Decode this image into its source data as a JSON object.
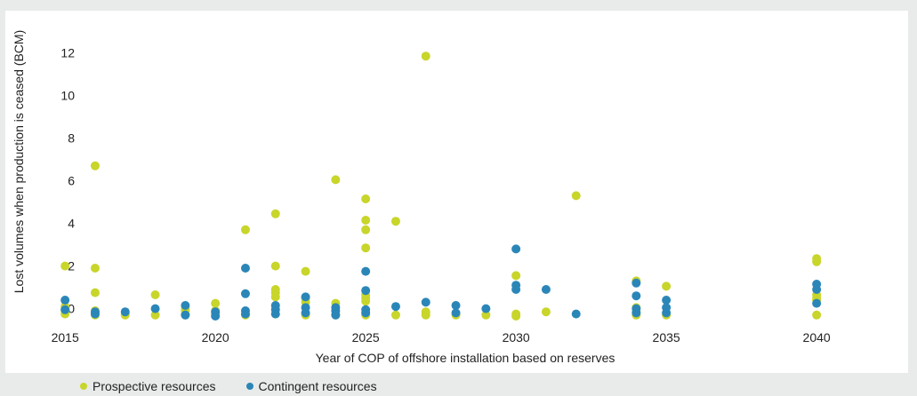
{
  "chart_data": {
    "type": "scatter",
    "title": "",
    "xlabel": "Year of COP of offshore installation based on reserves",
    "ylabel": "Lost volumes when production is ceased (BCM)",
    "xlim": [
      2013.9,
      2042.6
    ],
    "ylim": [
      -0.6,
      12.9
    ],
    "xticks": [
      2015,
      2020,
      2025,
      2030,
      2035,
      2040
    ],
    "yticks": [
      0,
      2,
      4,
      6,
      8,
      10,
      12
    ],
    "grid": false,
    "legend_position": "bottom-left",
    "series": [
      {
        "name": "Prospective resources",
        "color": "#c8d52a",
        "points": [
          [
            2015,
            2.0
          ],
          [
            2015,
            0.1
          ],
          [
            2015,
            -0.1
          ],
          [
            2015,
            -0.25
          ],
          [
            2016,
            6.7
          ],
          [
            2016,
            1.9
          ],
          [
            2016,
            0.75
          ],
          [
            2016,
            -0.1
          ],
          [
            2016,
            -0.2
          ],
          [
            2016,
            -0.3
          ],
          [
            2017,
            -0.25
          ],
          [
            2017,
            -0.3
          ],
          [
            2018,
            0.65
          ],
          [
            2018,
            -0.3
          ],
          [
            2019,
            0.0
          ],
          [
            2019,
            -0.1
          ],
          [
            2019,
            -0.3
          ],
          [
            2020,
            0.25
          ],
          [
            2020,
            -0.1
          ],
          [
            2020,
            -0.25
          ],
          [
            2021,
            3.7
          ],
          [
            2021,
            -0.25
          ],
          [
            2021,
            -0.3
          ],
          [
            2022,
            4.45
          ],
          [
            2022,
            2.0
          ],
          [
            2022,
            0.9
          ],
          [
            2022,
            0.75
          ],
          [
            2022,
            0.55
          ],
          [
            2022,
            -0.25
          ],
          [
            2023,
            1.75
          ],
          [
            2023,
            0.5
          ],
          [
            2023,
            0.3
          ],
          [
            2023,
            -0.3
          ],
          [
            2024,
            6.05
          ],
          [
            2024,
            0.25
          ],
          [
            2024,
            -0.3
          ],
          [
            2025,
            5.15
          ],
          [
            2025,
            4.15
          ],
          [
            2025,
            3.7
          ],
          [
            2025,
            2.85
          ],
          [
            2025,
            0.65
          ],
          [
            2025,
            0.5
          ],
          [
            2025,
            0.35
          ],
          [
            2025,
            -0.3
          ],
          [
            2026,
            4.1
          ],
          [
            2026,
            -0.3
          ],
          [
            2027,
            11.85
          ],
          [
            2027,
            -0.15
          ],
          [
            2027,
            -0.3
          ],
          [
            2028,
            -0.3
          ],
          [
            2029,
            -0.3
          ],
          [
            2030,
            1.55
          ],
          [
            2030,
            -0.25
          ],
          [
            2030,
            -0.35
          ],
          [
            2031,
            -0.15
          ],
          [
            2032,
            5.3
          ],
          [
            2034,
            1.3
          ],
          [
            2034,
            0.05
          ],
          [
            2034,
            -0.15
          ],
          [
            2034,
            -0.3
          ],
          [
            2035,
            1.05
          ],
          [
            2035,
            -0.3
          ],
          [
            2040,
            2.35
          ],
          [
            2040,
            2.2
          ],
          [
            2040,
            0.65
          ],
          [
            2040,
            0.5
          ],
          [
            2040,
            0.4
          ],
          [
            2040,
            -0.3
          ]
        ]
      },
      {
        "name": "Contingent resources",
        "color": "#2b86b8",
        "points": [
          [
            2015,
            0.4
          ],
          [
            2015,
            -0.05
          ],
          [
            2016,
            -0.15
          ],
          [
            2016,
            -0.25
          ],
          [
            2017,
            -0.15
          ],
          [
            2018,
            0.0
          ],
          [
            2019,
            0.15
          ],
          [
            2019,
            -0.3
          ],
          [
            2020,
            -0.15
          ],
          [
            2020,
            -0.35
          ],
          [
            2021,
            1.9
          ],
          [
            2021,
            0.7
          ],
          [
            2021,
            -0.1
          ],
          [
            2021,
            -0.25
          ],
          [
            2022,
            0.15
          ],
          [
            2022,
            -0.05
          ],
          [
            2022,
            -0.25
          ],
          [
            2023,
            0.55
          ],
          [
            2023,
            0.05
          ],
          [
            2023,
            -0.2
          ],
          [
            2024,
            0.05
          ],
          [
            2024,
            -0.1
          ],
          [
            2024,
            -0.3
          ],
          [
            2025,
            1.75
          ],
          [
            2025,
            0.85
          ],
          [
            2025,
            -0.05
          ],
          [
            2025,
            -0.2
          ],
          [
            2026,
            0.1
          ],
          [
            2027,
            0.3
          ],
          [
            2028,
            0.15
          ],
          [
            2028,
            -0.2
          ],
          [
            2029,
            0.0
          ],
          [
            2030,
            2.8
          ],
          [
            2030,
            1.1
          ],
          [
            2030,
            0.9
          ],
          [
            2031,
            0.9
          ],
          [
            2032,
            -0.25
          ],
          [
            2034,
            1.2
          ],
          [
            2034,
            0.6
          ],
          [
            2034,
            0.0
          ],
          [
            2034,
            -0.2
          ],
          [
            2035,
            0.4
          ],
          [
            2035,
            0.05
          ],
          [
            2035,
            -0.2
          ],
          [
            2040,
            1.15
          ],
          [
            2040,
            0.9
          ],
          [
            2040,
            0.25
          ]
        ]
      }
    ]
  }
}
